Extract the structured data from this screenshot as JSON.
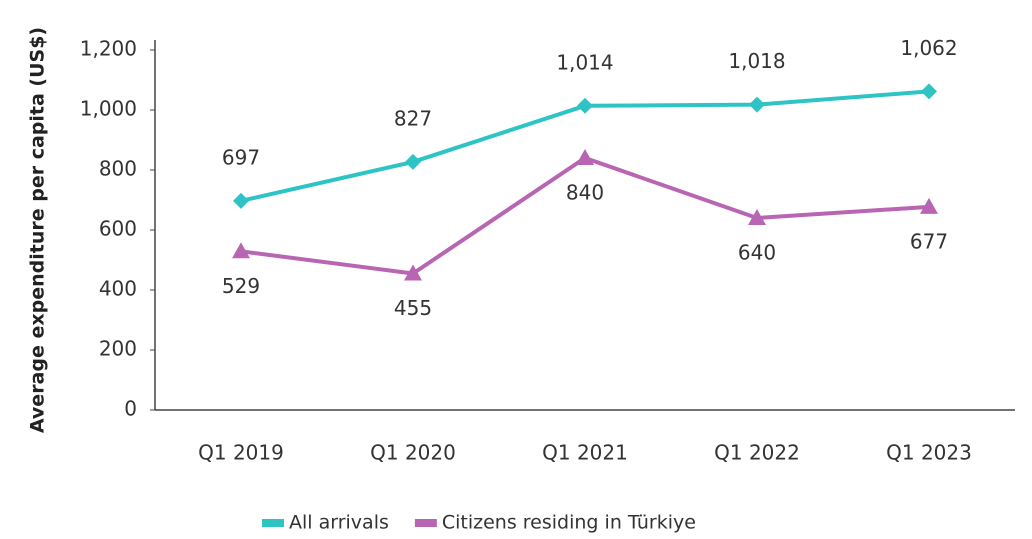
{
  "chart_data": {
    "type": "line",
    "y_label": "Average expenditure per capita (US$)",
    "categories": [
      "Q1 2019",
      "Q1 2020",
      "Q1 2021",
      "Q1 2022",
      "Q1 2023"
    ],
    "series": [
      {
        "name": "All arrivals",
        "color": "#2ec4c6",
        "marker": "diamond",
        "values": [
          697,
          827,
          1014,
          1018,
          1062
        ],
        "value_labels": [
          "697",
          "827",
          "1,014",
          "1,018",
          "1,062"
        ]
      },
      {
        "name": "Citizens residing in Türkiye",
        "color": "#b865b3",
        "marker": "triangle",
        "values": [
          529,
          455,
          840,
          640,
          677
        ],
        "value_labels": [
          "529",
          "455",
          "840",
          "640",
          "677"
        ]
      }
    ],
    "ylim": [
      0,
      1200
    ],
    "yticks": [
      0,
      200,
      400,
      600,
      800,
      {
        "value": 1000,
        "label": "1,000"
      },
      {
        "value": 1200,
        "label": "1,200"
      }
    ],
    "grid": false,
    "legend": "bottom"
  }
}
